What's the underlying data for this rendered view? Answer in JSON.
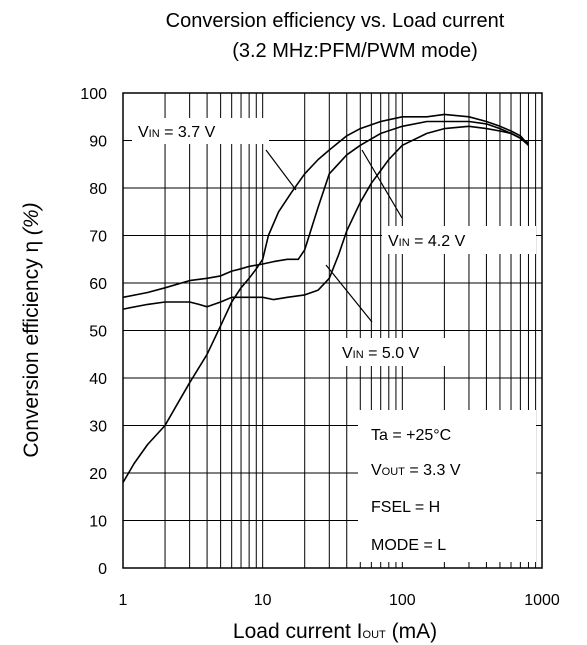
{
  "chart_data": {
    "type": "line",
    "title_line1": "Conversion efficiency vs. Load current",
    "title_line2": "(3.2 MHz:PFM/PWM mode)",
    "xlabel": {
      "main": "Load current I",
      "sub": "OUT",
      "unit": " (mA)"
    },
    "ylabel": {
      "main": "Conversion efficiency η ",
      "unit": "(%)"
    },
    "x_scale": "log",
    "xlim": [
      1,
      1000
    ],
    "ylim": [
      0,
      100
    ],
    "x_ticks": [
      1,
      10,
      100,
      1000
    ],
    "x_tick_labels": [
      "1",
      "10",
      "100",
      "1000"
    ],
    "y_ticks": [
      0,
      10,
      20,
      30,
      40,
      50,
      60,
      70,
      80,
      90,
      100
    ],
    "y_tick_labels": [
      "0",
      "10",
      "20",
      "30",
      "40",
      "50",
      "60",
      "70",
      "80",
      "90",
      "100"
    ],
    "grid": true,
    "series": [
      {
        "name": "VIN = 3.7 V",
        "x": [
          1,
          1.2,
          1.5,
          2,
          2.5,
          3,
          4,
          5,
          6,
          7,
          8,
          9,
          10,
          11,
          13,
          16,
          20,
          25,
          30,
          40,
          50,
          70,
          100,
          150,
          200,
          300,
          400,
          500,
          600,
          700,
          800
        ],
        "values": [
          18,
          22,
          26,
          30,
          35,
          39,
          45,
          51,
          56,
          59,
          61,
          63,
          65,
          70,
          75,
          79,
          83,
          86,
          88,
          91,
          92.5,
          94,
          95,
          95,
          95.5,
          95,
          94,
          93,
          92,
          91,
          89
        ]
      },
      {
        "name": "VIN = 4.2 V",
        "x": [
          1,
          1.5,
          2,
          3,
          4,
          5,
          6,
          7,
          8,
          10,
          12,
          15,
          18,
          20,
          25,
          30,
          40,
          50,
          70,
          100,
          150,
          200,
          300,
          400,
          500,
          600,
          700,
          800
        ],
        "values": [
          57,
          58,
          59,
          60.5,
          61,
          61.5,
          62.5,
          63,
          63.5,
          64,
          64.5,
          65,
          65,
          67,
          76,
          83,
          87,
          89,
          91.5,
          93,
          94,
          94,
          94,
          93.5,
          92.5,
          91.5,
          90.5,
          89.5
        ]
      },
      {
        "name": "VIN = 5.0 V",
        "x": [
          1,
          1.5,
          2,
          3,
          3.5,
          4,
          5,
          6,
          8,
          10,
          12,
          15,
          20,
          25,
          30,
          35,
          40,
          50,
          60,
          80,
          100,
          150,
          200,
          300,
          400,
          500,
          600,
          700,
          800
        ],
        "values": [
          54.5,
          55.5,
          56,
          56,
          55.5,
          55,
          56,
          57,
          57,
          57,
          56.5,
          57,
          57.5,
          58.5,
          61,
          66,
          71,
          77,
          81,
          86,
          89,
          91.5,
          92.5,
          93,
          92.5,
          92,
          91.5,
          90.5,
          89
        ]
      }
    ],
    "series_labels": [
      {
        "main": "V",
        "sub": "IN",
        "rest": " = 3.7 V"
      },
      {
        "main": "V",
        "sub": "IN",
        "rest": " = 4.2 V"
      },
      {
        "main": "V",
        "sub": "IN",
        "rest": " = 5.0 V"
      }
    ],
    "conditions": [
      {
        "main": "Ta = +25°C",
        "sub": "",
        "rest": ""
      },
      {
        "main": "V",
        "sub": "OUT",
        "rest": " = 3.3 V"
      },
      {
        "main": "FSEL = H",
        "sub": "",
        "rest": ""
      },
      {
        "main": "MODE = L",
        "sub": "",
        "rest": ""
      }
    ],
    "colors": {
      "line": "#000000",
      "grid": "#000000",
      "background": "#ffffff"
    }
  }
}
